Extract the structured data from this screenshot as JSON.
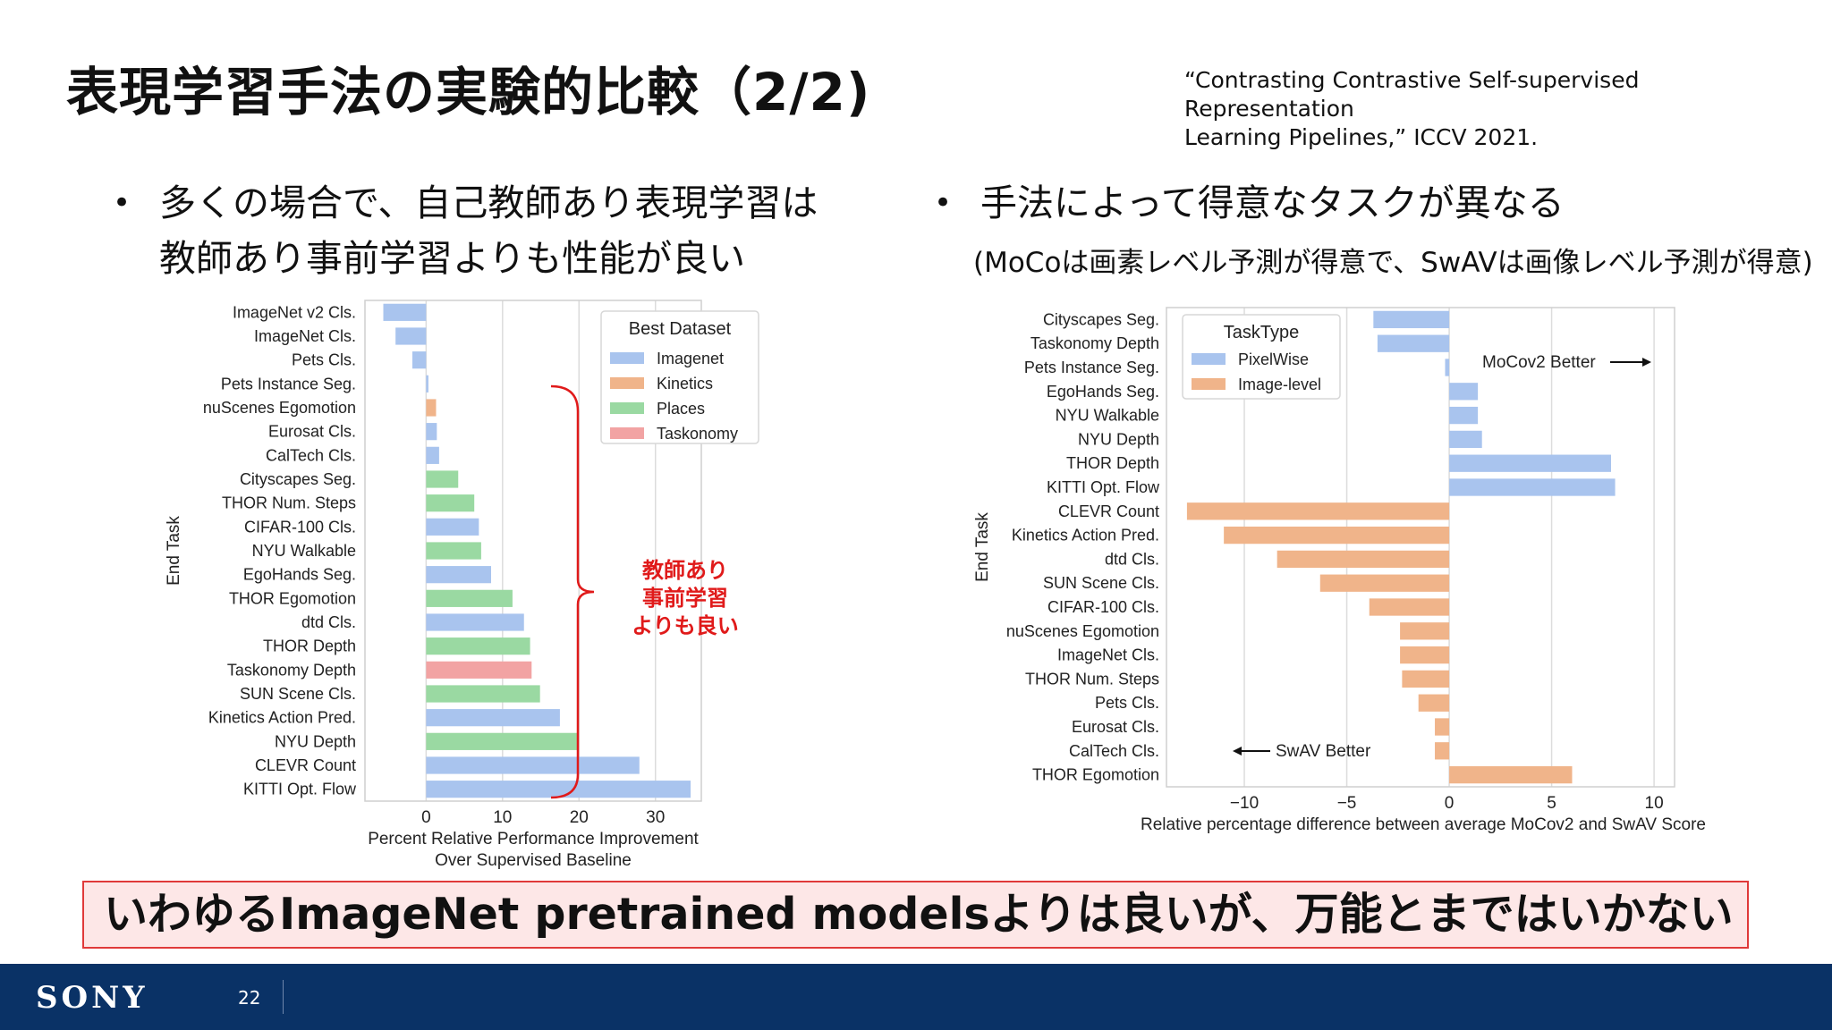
{
  "slide": {
    "title": "表現学習手法の実験的比較（2/2)",
    "citation_line1": "“Contrasting Contrastive Self-supervised Representation",
    "citation_line2": "Learning Pipelines,” ICCV 2021.",
    "bullet_left_line1": "多くの場合で、自己教師あり表現学習は",
    "bullet_left_line2": "教師あり事前学習よりも性能が良い",
    "bullet_right": "手法によって得意なタスクが異なる",
    "bullet_right_note": "(MoCoは画素レベル予測が得意で、SwAVは画像レベル予測が得意)",
    "summary": "いわゆるImageNet pretrained modelsよりは良いが、万能とまではいかない",
    "footer_logo": "SONY",
    "page_number": "22",
    "bullet_symbol": "•"
  },
  "colors": {
    "imagenet": "#a9c4ee",
    "kinetics": "#f0b48a",
    "places": "#9ad9a2",
    "taskonomy": "#f2a3a3",
    "pixelwise": "#a9c4ee",
    "image_level": "#f0b48a",
    "annotation_red": "#e01a1a",
    "footer_bg": "#0a3266"
  },
  "chart_data": [
    {
      "type": "bar",
      "orientation": "horizontal",
      "ylabel": "End Task",
      "xlabel_line1": "Percent Relative Performance Improvement",
      "xlabel_line2": "Over Supervised Baseline",
      "xlim": [
        -8,
        36
      ],
      "xticks": [
        0,
        10,
        20,
        30
      ],
      "legend_title": "Best Dataset",
      "legend_placement": "top-right",
      "legend": [
        {
          "name": "Imagenet",
          "color_key": "imagenet"
        },
        {
          "name": "Kinetics",
          "color_key": "kinetics"
        },
        {
          "name": "Places",
          "color_key": "places"
        },
        {
          "name": "Taskonomy",
          "color_key": "taskonomy"
        }
      ],
      "annotation_lines": [
        "教師あり",
        "事前学習",
        "よりも良い"
      ],
      "categories": [
        "ImageNet v2 Cls.",
        "ImageNet Cls.",
        "Pets Cls.",
        "Pets Instance Seg.",
        "nuScenes Egomotion",
        "Eurosat Cls.",
        "CalTech Cls.",
        "Cityscapes Seg.",
        "THOR Num. Steps",
        "CIFAR-100 Cls.",
        "NYU Walkable",
        "EgoHands Seg.",
        "THOR Egomotion",
        "dtd Cls.",
        "THOR Depth",
        "Taskonomy Depth",
        "SUN Scene Cls.",
        "Kinetics Action Pred.",
        "NYU Depth",
        "CLEVR Count",
        "KITTI Opt. Flow"
      ],
      "values": [
        -5.6,
        -4.0,
        -1.8,
        0.3,
        1.3,
        1.4,
        1.7,
        4.2,
        6.3,
        6.9,
        7.2,
        8.5,
        11.3,
        12.8,
        13.6,
        13.8,
        14.9,
        17.5,
        19.8,
        27.9,
        34.6
      ],
      "dataset": [
        "imagenet",
        "imagenet",
        "imagenet",
        "imagenet",
        "kinetics",
        "imagenet",
        "imagenet",
        "places",
        "places",
        "imagenet",
        "places",
        "imagenet",
        "places",
        "imagenet",
        "places",
        "taskonomy",
        "places",
        "imagenet",
        "places",
        "imagenet",
        "imagenet"
      ],
      "grid": true
    },
    {
      "type": "bar",
      "orientation": "horizontal",
      "ylabel": "End Task",
      "xlabel": "Relative percentage difference between average MoCov2 and SwAV Score",
      "xlim": [
        -13.8,
        11
      ],
      "xticks": [
        -10,
        -5,
        0,
        5,
        10
      ],
      "xtick_labels": [
        "−10",
        "−5",
        "0",
        "5",
        "10"
      ],
      "legend_title": "TaskType",
      "legend_placement": "top-left",
      "legend": [
        {
          "name": "PixelWise",
          "color_key": "pixelwise"
        },
        {
          "name": "Image-level",
          "color_key": "image_level"
        }
      ],
      "annotation_moco": "MoCov2 Better",
      "annotation_swav": "SwAV Better",
      "categories": [
        "Cityscapes Seg.",
        "Taskonomy Depth",
        "Pets Instance Seg.",
        "EgoHands Seg.",
        "NYU Walkable",
        "NYU Depth",
        "THOR Depth",
        "KITTI Opt. Flow",
        "CLEVR Count",
        "Kinetics Action Pred.",
        "dtd Cls.",
        "SUN Scene Cls.",
        "CIFAR-100 Cls.",
        "nuScenes Egomotion",
        "ImageNet Cls.",
        "THOR Num. Steps",
        "Pets Cls.",
        "Eurosat Cls.",
        "CalTech Cls.",
        "THOR Egomotion"
      ],
      "values": [
        -3.7,
        -3.5,
        -0.2,
        1.4,
        1.4,
        1.6,
        7.9,
        8.1,
        -12.8,
        -11.0,
        -8.4,
        -6.3,
        -3.9,
        -2.4,
        -2.4,
        -2.3,
        -1.5,
        -0.7,
        -0.7,
        6.0
      ],
      "task_type": [
        "pixelwise",
        "pixelwise",
        "pixelwise",
        "pixelwise",
        "pixelwise",
        "pixelwise",
        "pixelwise",
        "pixelwise",
        "image_level",
        "image_level",
        "image_level",
        "image_level",
        "image_level",
        "image_level",
        "image_level",
        "image_level",
        "image_level",
        "image_level",
        "image_level",
        "image_level"
      ],
      "grid": true
    }
  ]
}
